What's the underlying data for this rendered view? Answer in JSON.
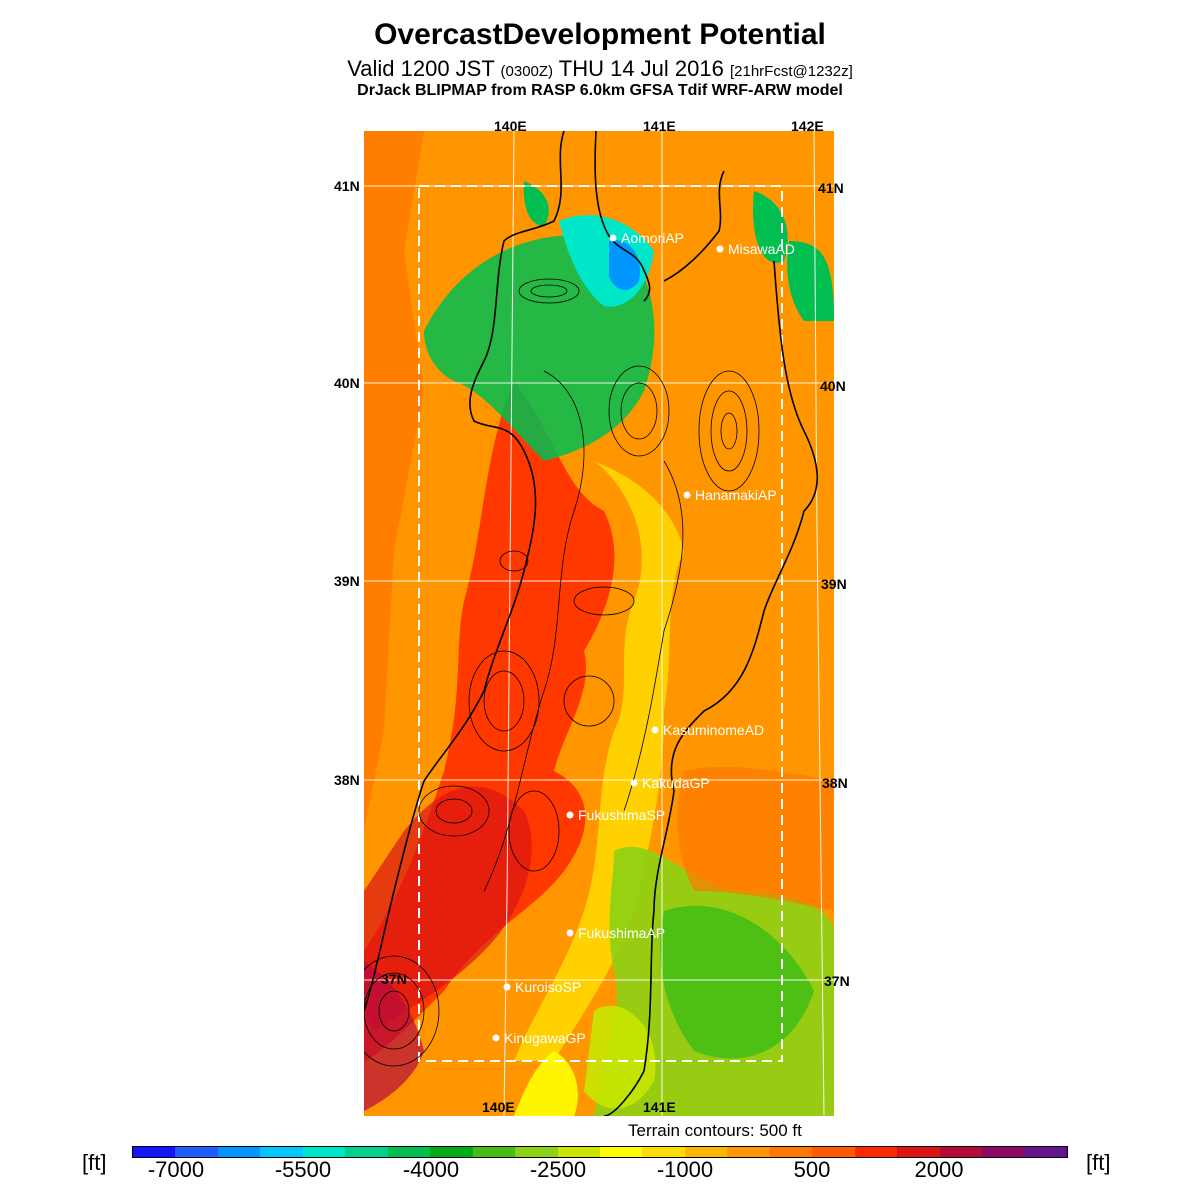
{
  "header": {
    "title": "OvercastDevelopment Potential",
    "valid_label": "Valid 1200 JST",
    "utc_time": "(0300Z)",
    "date_text": "THU 14 Jul 2016",
    "forecast_info": "[21hrFcst@1232z]",
    "model_info": "DrJack BLIPMAP from RASP 6.0km GFSA Tdif WRF-ARW model"
  },
  "map": {
    "lon_labels_top": [
      "140E",
      "141E",
      "142E"
    ],
    "lon_labels_bottom": [
      "140E",
      "141E"
    ],
    "lat_labels_left": [
      "41N",
      "40N",
      "39N",
      "38N",
      "37N"
    ],
    "lat_labels_right": [
      "41N",
      "40N",
      "39N",
      "38N",
      "37N"
    ],
    "stations": [
      {
        "name": "AomoriAP"
      },
      {
        "name": "MisawaAD"
      },
      {
        "name": "HanamakiAP"
      },
      {
        "name": "KasuminomeAD"
      },
      {
        "name": "KakudaGP"
      },
      {
        "name": "FukushimaSP"
      },
      {
        "name": "FukushimaAP"
      },
      {
        "name": "KuroisoSP"
      },
      {
        "name": "KinugawaGP"
      }
    ],
    "terrain_note": "Terrain contours: 500 ft"
  },
  "colorbar": {
    "unit_left": "[ft]",
    "unit_right": "[ft]",
    "tick_labels": [
      "-7000",
      "-5500",
      "-4000",
      "-2500",
      "-1000",
      "500",
      "2000"
    ],
    "colors": [
      "#1414ff",
      "#1e5aff",
      "#0096ff",
      "#00c8ff",
      "#00e6c8",
      "#00d28c",
      "#00be50",
      "#00aa14",
      "#46be14",
      "#8cd214",
      "#c8e600",
      "#ffff00",
      "#ffdc00",
      "#ffb400",
      "#ff9600",
      "#ff7800",
      "#ff5a00",
      "#ff2800",
      "#dc1414",
      "#b40a3c",
      "#8c0a64",
      "#64148c"
    ]
  }
}
